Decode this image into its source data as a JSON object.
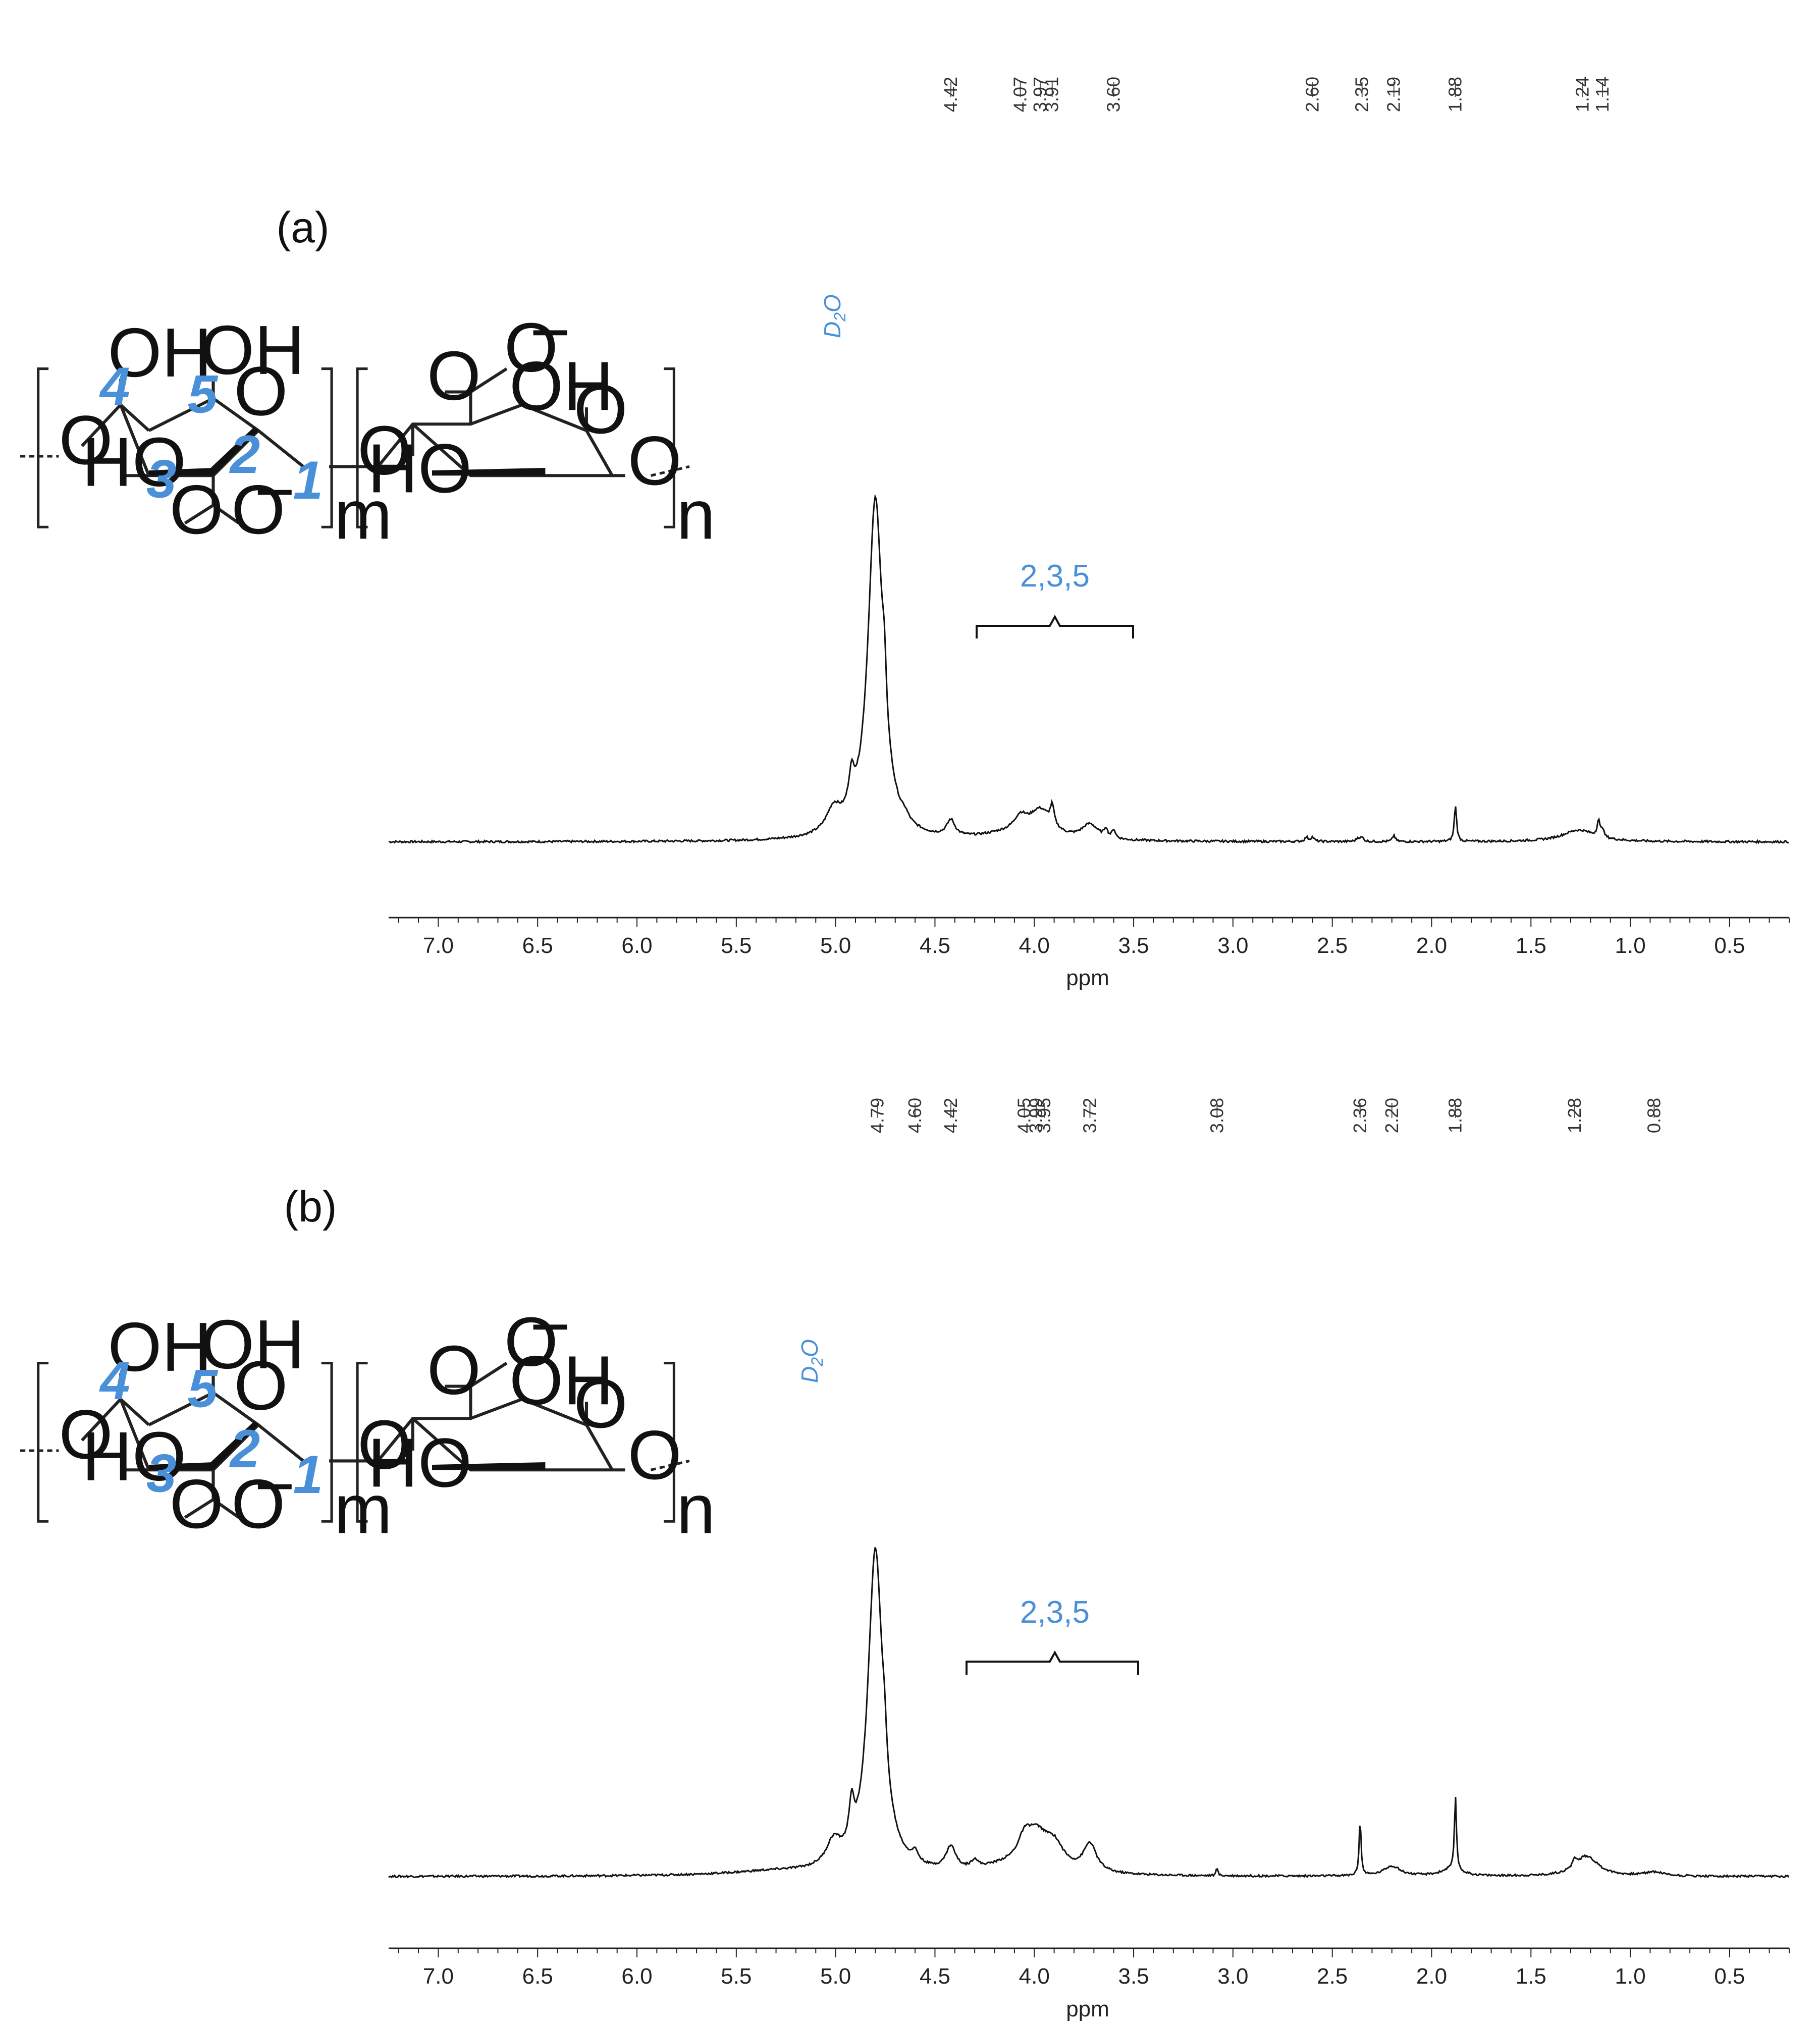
{
  "colors": {
    "annotation": "#4a90d9",
    "spectrum": "#111111"
  },
  "chart_data": [
    {
      "type": "line",
      "panel_label": "(a)",
      "xlabel": "ppm",
      "xlim": [
        7.25,
        0.2
      ],
      "x_reversed": true,
      "ylabel": "",
      "grid": false,
      "x_ticks": [
        7.0,
        6.5,
        6.0,
        5.5,
        5.0,
        4.5,
        4.0,
        3.5,
        3.0,
        2.5,
        2.0,
        1.5,
        1.0,
        0.5
      ],
      "x_tick_labels": [
        "7.0",
        "6.5",
        "6.0",
        "5.5",
        "5.0",
        "4.5",
        "4.0",
        "3.5",
        "3.0",
        "2.5",
        "2.0",
        "1.5",
        "1.0",
        "0.5"
      ],
      "peak_labels": [
        "4.42",
        "4.07",
        "3.97",
        "3.91",
        "3.60",
        "2.60",
        "2.35",
        "2.19",
        "1.88",
        "1.24",
        "1.14"
      ],
      "annotations": [
        {
          "text": "D2O",
          "display": [
            "D",
            "2",
            "O"
          ],
          "x": 4.83
        },
        {
          "text": "2,3,5",
          "x_range": [
            4.28,
            3.5
          ],
          "x": 3.9
        }
      ],
      "structure_labels": {
        "oh": "OH",
        "ho": "HO",
        "o": "O",
        "oxy": "O",
        "minus": "−",
        "m": "m",
        "n": "n",
        "positions": [
          "1",
          "2",
          "3",
          "4",
          "5"
        ]
      },
      "peaks": [
        {
          "x": 4.8,
          "height": 3.2,
          "width": 0.045
        },
        {
          "x": 4.755,
          "height": 0.45,
          "width": 0.012
        },
        {
          "x": 4.92,
          "height": 0.32,
          "width": 0.018
        },
        {
          "x": 5.01,
          "height": 0.22,
          "width": 0.045
        },
        {
          "x": 4.65,
          "height": 0.05,
          "width": 0.02
        },
        {
          "x": 4.42,
          "height": 0.15,
          "width": 0.025
        },
        {
          "x": 4.07,
          "height": 0.14,
          "width": 0.04
        },
        {
          "x": 3.97,
          "height": 0.26,
          "width": 0.07
        },
        {
          "x": 3.91,
          "height": 0.18,
          "width": 0.012
        },
        {
          "x": 3.72,
          "height": 0.14,
          "width": 0.05
        },
        {
          "x": 3.64,
          "height": 0.08,
          "width": 0.01
        },
        {
          "x": 3.6,
          "height": 0.08,
          "width": 0.01
        },
        {
          "x": 4.15,
          "height": 0.05,
          "width": 0.15
        },
        {
          "x": 2.63,
          "height": 0.04,
          "width": 0.01
        },
        {
          "x": 2.6,
          "height": 0.04,
          "width": 0.01
        },
        {
          "x": 2.37,
          "height": 0.035,
          "width": 0.01
        },
        {
          "x": 2.35,
          "height": 0.035,
          "width": 0.01
        },
        {
          "x": 2.19,
          "height": 0.06,
          "width": 0.008
        },
        {
          "x": 1.88,
          "height": 0.34,
          "width": 0.007
        },
        {
          "x": 1.26,
          "height": 0.11,
          "width": 0.1
        },
        {
          "x": 1.16,
          "height": 0.15,
          "width": 0.008
        },
        {
          "x": 1.14,
          "height": 0.08,
          "width": 0.008
        }
      ]
    },
    {
      "type": "line",
      "panel_label": "(b)",
      "xlabel": "ppm",
      "xlim": [
        7.25,
        0.2
      ],
      "x_reversed": true,
      "ylabel": "",
      "grid": false,
      "x_ticks": [
        7.0,
        6.5,
        6.0,
        5.5,
        5.0,
        4.5,
        4.0,
        3.5,
        3.0,
        2.5,
        2.0,
        1.5,
        1.0,
        0.5
      ],
      "x_tick_labels": [
        "7.0",
        "6.5",
        "6.0",
        "5.5",
        "5.0",
        "4.5",
        "4.0",
        "3.5",
        "3.0",
        "2.5",
        "2.0",
        "1.5",
        "1.0",
        "0.5"
      ],
      "peak_labels": [
        "4.79",
        "4.60",
        "4.42",
        "4.05",
        "3.99",
        "3.95",
        "3.72",
        "3.08",
        "2.36",
        "2.20",
        "1.88",
        "1.28",
        "0.88"
      ],
      "annotations": [
        {
          "text": "D2O",
          "display": [
            "D",
            "2",
            "O"
          ],
          "x": 4.89
        },
        {
          "text": "2,3,5",
          "x_range": [
            4.33,
            3.47
          ],
          "x": 3.9
        }
      ],
      "structure_labels": {
        "oh": "OH",
        "ho": "HO",
        "o": "O",
        "oxy": "O",
        "minus": "−",
        "m": "m",
        "n": "n",
        "positions": [
          "1",
          "2",
          "3",
          "4",
          "5"
        ]
      },
      "peaks": [
        {
          "x": 4.8,
          "height": 3.2,
          "width": 0.045
        },
        {
          "x": 4.755,
          "height": 0.3,
          "width": 0.012
        },
        {
          "x": 4.92,
          "height": 0.4,
          "width": 0.015
        },
        {
          "x": 5.01,
          "height": 0.24,
          "width": 0.045
        },
        {
          "x": 4.6,
          "height": 0.1,
          "width": 0.02
        },
        {
          "x": 4.42,
          "height": 0.23,
          "width": 0.03
        },
        {
          "x": 4.3,
          "height": 0.08,
          "width": 0.02
        },
        {
          "x": 4.05,
          "height": 0.2,
          "width": 0.04
        },
        {
          "x": 3.99,
          "height": 0.33,
          "width": 0.07
        },
        {
          "x": 3.9,
          "height": 0.23,
          "width": 0.06
        },
        {
          "x": 3.72,
          "height": 0.28,
          "width": 0.04
        },
        {
          "x": 4.15,
          "height": 0.07,
          "width": 0.15
        },
        {
          "x": 5.3,
          "height": 0.04,
          "width": 0.3
        },
        {
          "x": 3.08,
          "height": 0.08,
          "width": 0.005
        },
        {
          "x": 2.36,
          "height": 0.55,
          "width": 0.006
        },
        {
          "x": 2.2,
          "height": 0.1,
          "width": 0.05
        },
        {
          "x": 1.88,
          "height": 0.72,
          "width": 0.006
        },
        {
          "x": 1.9,
          "height": 0.07,
          "width": 0.06
        },
        {
          "x": 1.22,
          "height": 0.2,
          "width": 0.07
        },
        {
          "x": 1.28,
          "height": 0.08,
          "width": 0.01
        },
        {
          "x": 0.88,
          "height": 0.04,
          "width": 0.06
        }
      ]
    }
  ]
}
